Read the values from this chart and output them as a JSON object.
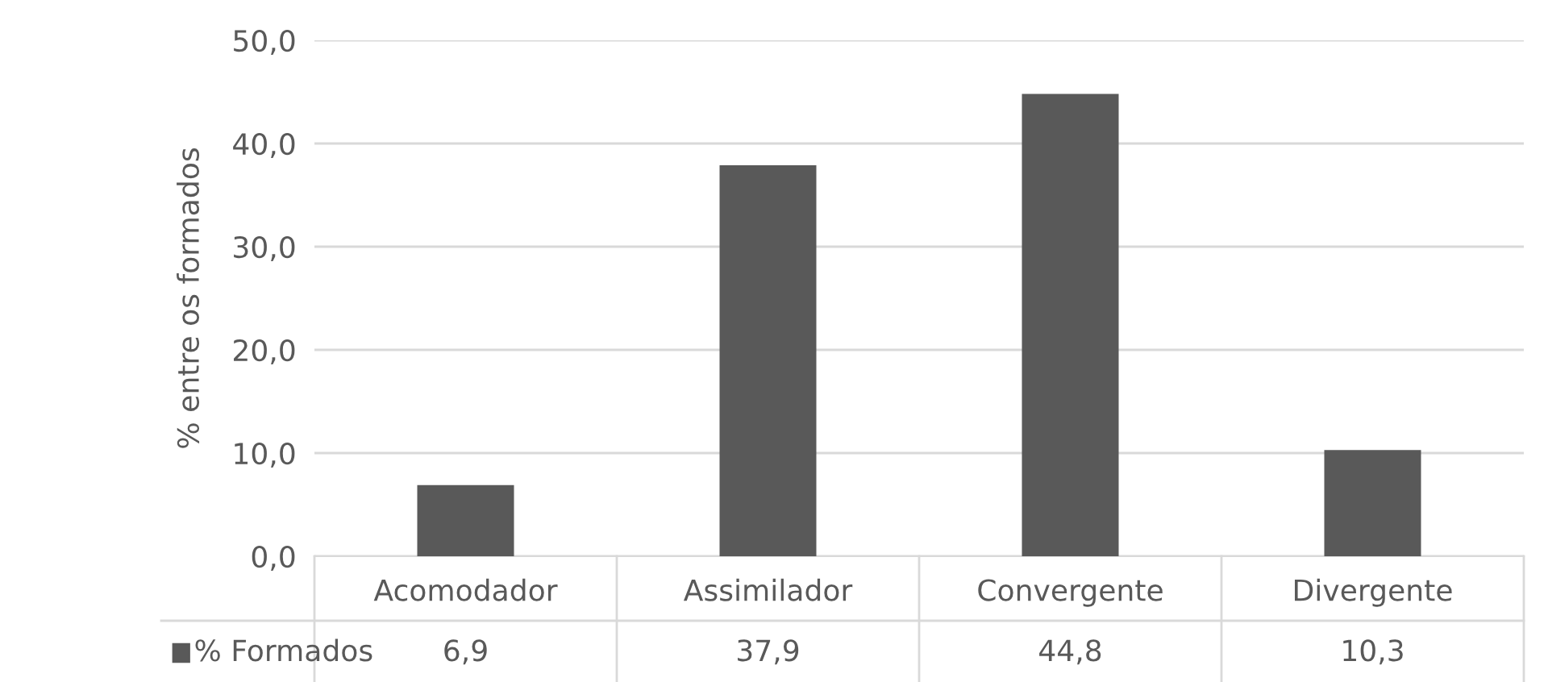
{
  "chart_data": {
    "type": "bar",
    "ylabel": "% entre os formados",
    "categories": [
      "Acomodador",
      "Assimilador",
      "Convergente",
      "Divergente"
    ],
    "series": [
      {
        "name": "% Formados",
        "color": "#595959",
        "values": [
          6.9,
          37.9,
          44.8,
          10.3
        ],
        "value_labels": [
          "6,9",
          "37,9",
          "44,8",
          "10,3"
        ]
      }
    ],
    "ylim": [
      0,
      50
    ],
    "yticks": [
      {
        "value": 0,
        "label": "0,0"
      },
      {
        "value": 10,
        "label": "10,0"
      },
      {
        "value": 20,
        "label": "20,0"
      },
      {
        "value": 30,
        "label": "30,0"
      },
      {
        "value": 40,
        "label": "40,0"
      },
      {
        "value": 50,
        "label": "50,0"
      }
    ],
    "grid": "y",
    "legend": "bottom"
  }
}
